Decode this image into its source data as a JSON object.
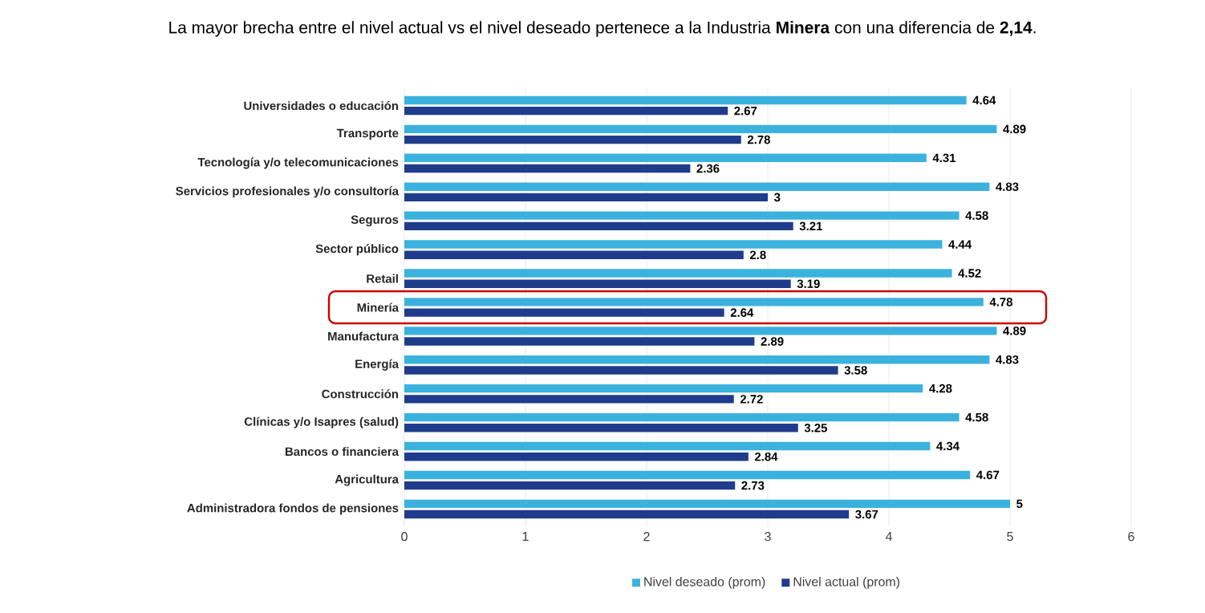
{
  "chart_data": {
    "type": "bar",
    "orientation": "horizontal",
    "title": "La mayor brecha entre el nivel actual vs el nivel deseado pertenece a la Industria **Minera** con una diferencia de **2,14**.",
    "categories": [
      "Universidades o educación",
      "Transporte",
      "Tecnología y/o telecomunicaciones",
      "Servicios profesionales y/o consultoría",
      "Seguros",
      "Sector público",
      "Retail",
      "Minería",
      "Manufactura",
      "Energía",
      "Construcción",
      "Clínicas y/o Isapres (salud)",
      "Bancos o financiera",
      "Agricultura",
      "Administradora fondos de pensiones"
    ],
    "series": [
      {
        "name": "Nivel deseado (prom)",
        "color": "#3bb2de",
        "values": [
          4.64,
          4.89,
          4.31,
          4.83,
          4.58,
          4.44,
          4.52,
          4.78,
          4.89,
          4.83,
          4.28,
          4.58,
          4.34,
          4.67,
          5
        ]
      },
      {
        "name": "Nivel actual (prom)",
        "color": "#1f3c8c",
        "values": [
          2.67,
          2.78,
          2.36,
          3,
          3.21,
          2.8,
          3.19,
          2.64,
          2.89,
          3.58,
          2.72,
          3.25,
          2.84,
          2.73,
          3.67
        ]
      }
    ],
    "xlim": [
      0,
      6
    ],
    "xticks": [
      0,
      1,
      2,
      3,
      4,
      5,
      6
    ],
    "grid": "x",
    "legend": "bottom",
    "data_labels": true
  }
}
